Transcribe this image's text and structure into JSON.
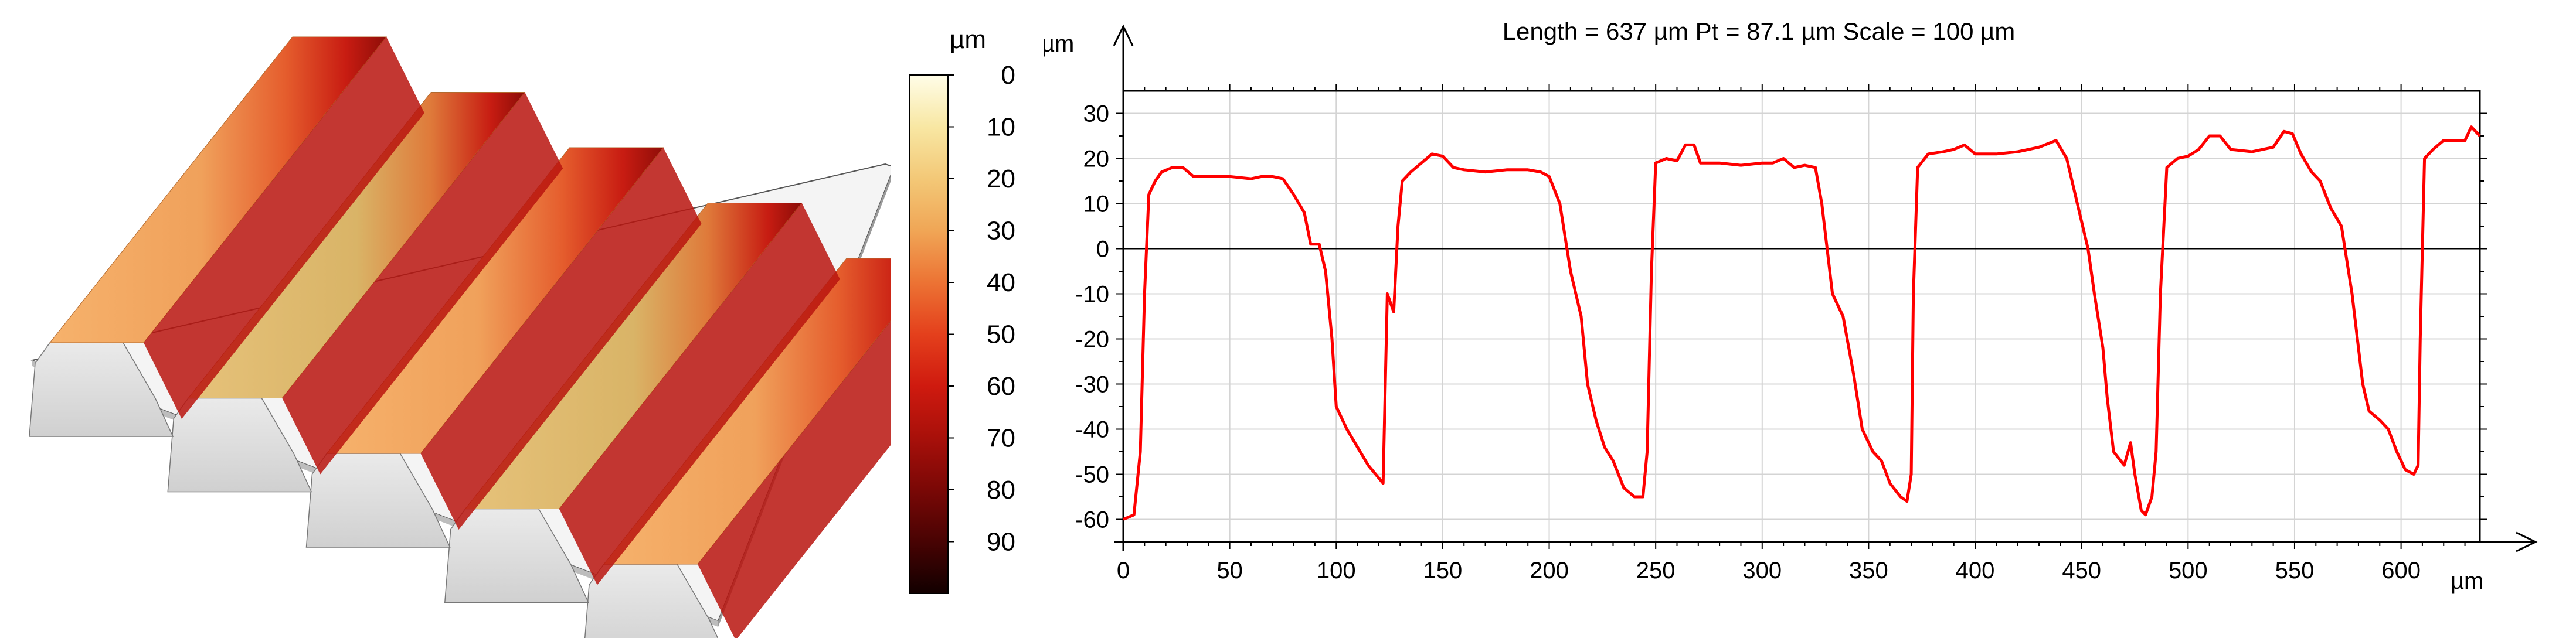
{
  "surface": {
    "ridge_count": 5
  },
  "colorbar": {
    "unit": "µm",
    "ticks": [
      "0",
      "10",
      "20",
      "30",
      "40",
      "50",
      "60",
      "70",
      "80",
      "90"
    ],
    "colors": [
      "#fffde8",
      "#f8e7a3",
      "#f3c877",
      "#f0a656",
      "#ec7334",
      "#e4401c",
      "#cf1a0f",
      "#a8100a",
      "#7a0806",
      "#480303",
      "#120000"
    ]
  },
  "chart_data": {
    "type": "line",
    "title": "Length = 637 µm  Pt = 87.1 µm  Scale = 100 µm",
    "xlabel": "µm",
    "ylabel": "µm",
    "xlim": [
      0,
      637
    ],
    "ylim": [
      -65,
      35
    ],
    "xticks": [
      0,
      50,
      100,
      150,
      200,
      250,
      300,
      350,
      400,
      450,
      500,
      550,
      600
    ],
    "yticks": [
      30,
      20,
      10,
      0,
      -10,
      -20,
      -30,
      -40,
      -50,
      -60
    ],
    "grid": true,
    "line_color": "#ff0000",
    "series": [
      {
        "values": [
          [
            0,
            -60
          ],
          [
            5,
            -59
          ],
          [
            8,
            -45
          ],
          [
            10,
            -10
          ],
          [
            12,
            12
          ],
          [
            15,
            15
          ],
          [
            18,
            17
          ],
          [
            23,
            18
          ],
          [
            28,
            18
          ],
          [
            33,
            16
          ],
          [
            40,
            16
          ],
          [
            50,
            16
          ],
          [
            60,
            15.5
          ],
          [
            65,
            16
          ],
          [
            70,
            16
          ],
          [
            75,
            15.5
          ],
          [
            80,
            12
          ],
          [
            85,
            8
          ],
          [
            88,
            1
          ],
          [
            92,
            1
          ],
          [
            95,
            -5
          ],
          [
            98,
            -20
          ],
          [
            100,
            -35
          ],
          [
            105,
            -40
          ],
          [
            110,
            -44
          ],
          [
            115,
            -48
          ],
          [
            122,
            -52
          ],
          [
            124,
            -10
          ],
          [
            127,
            -14
          ],
          [
            129,
            5
          ],
          [
            131,
            15
          ],
          [
            135,
            17
          ],
          [
            140,
            19
          ],
          [
            145,
            21
          ],
          [
            150,
            20.5
          ],
          [
            155,
            18
          ],
          [
            160,
            17.5
          ],
          [
            170,
            17
          ],
          [
            180,
            17.5
          ],
          [
            190,
            17.5
          ],
          [
            196,
            17
          ],
          [
            200,
            16
          ],
          [
            205,
            10
          ],
          [
            210,
            -5
          ],
          [
            215,
            -15
          ],
          [
            218,
            -30
          ],
          [
            222,
            -38
          ],
          [
            226,
            -44
          ],
          [
            230,
            -47
          ],
          [
            235,
            -53
          ],
          [
            240,
            -55
          ],
          [
            244,
            -55
          ],
          [
            246,
            -45
          ],
          [
            248,
            -5
          ],
          [
            250,
            19
          ],
          [
            255,
            20
          ],
          [
            260,
            19.5
          ],
          [
            264,
            23
          ],
          [
            268,
            23
          ],
          [
            271,
            19
          ],
          [
            280,
            19
          ],
          [
            290,
            18.5
          ],
          [
            300,
            19
          ],
          [
            305,
            19
          ],
          [
            310,
            20
          ],
          [
            315,
            18
          ],
          [
            320,
            18.5
          ],
          [
            325,
            18
          ],
          [
            328,
            10
          ],
          [
            333,
            -10
          ],
          [
            338,
            -15
          ],
          [
            343,
            -28
          ],
          [
            347,
            -40
          ],
          [
            352,
            -45
          ],
          [
            356,
            -47
          ],
          [
            360,
            -52
          ],
          [
            365,
            -55
          ],
          [
            368,
            -56
          ],
          [
            370,
            -50
          ],
          [
            371,
            -10
          ],
          [
            373,
            18
          ],
          [
            378,
            21
          ],
          [
            385,
            21.5
          ],
          [
            390,
            22
          ],
          [
            395,
            23
          ],
          [
            400,
            21
          ],
          [
            410,
            21
          ],
          [
            420,
            21.5
          ],
          [
            430,
            22.5
          ],
          [
            438,
            24
          ],
          [
            443,
            20
          ],
          [
            448,
            10
          ],
          [
            453,
            0
          ],
          [
            456,
            -10
          ],
          [
            460,
            -22
          ],
          [
            462,
            -33
          ],
          [
            465,
            -45
          ],
          [
            470,
            -48
          ],
          [
            473,
            -43
          ],
          [
            475,
            -50
          ],
          [
            478,
            -58
          ],
          [
            480,
            -59
          ],
          [
            483,
            -55
          ],
          [
            485,
            -45
          ],
          [
            487,
            -10
          ],
          [
            490,
            18
          ],
          [
            495,
            20
          ],
          [
            500,
            20.5
          ],
          [
            505,
            22
          ],
          [
            510,
            25
          ],
          [
            515,
            25
          ],
          [
            520,
            22
          ],
          [
            530,
            21.5
          ],
          [
            535,
            22
          ],
          [
            540,
            22.5
          ],
          [
            545,
            26
          ],
          [
            549,
            25.5
          ],
          [
            553,
            21
          ],
          [
            558,
            17
          ],
          [
            562,
            15
          ],
          [
            567,
            9
          ],
          [
            572,
            5
          ],
          [
            577,
            -10
          ],
          [
            582,
            -30
          ],
          [
            585,
            -36
          ],
          [
            590,
            -38
          ],
          [
            594,
            -40
          ],
          [
            598,
            -45
          ],
          [
            602,
            -49
          ],
          [
            606,
            -50
          ],
          [
            608,
            -48
          ],
          [
            609,
            -20
          ],
          [
            611,
            20
          ],
          [
            615,
            22
          ],
          [
            620,
            24
          ],
          [
            625,
            24
          ],
          [
            630,
            24
          ],
          [
            633,
            27
          ],
          [
            637,
            25
          ]
        ]
      }
    ]
  }
}
